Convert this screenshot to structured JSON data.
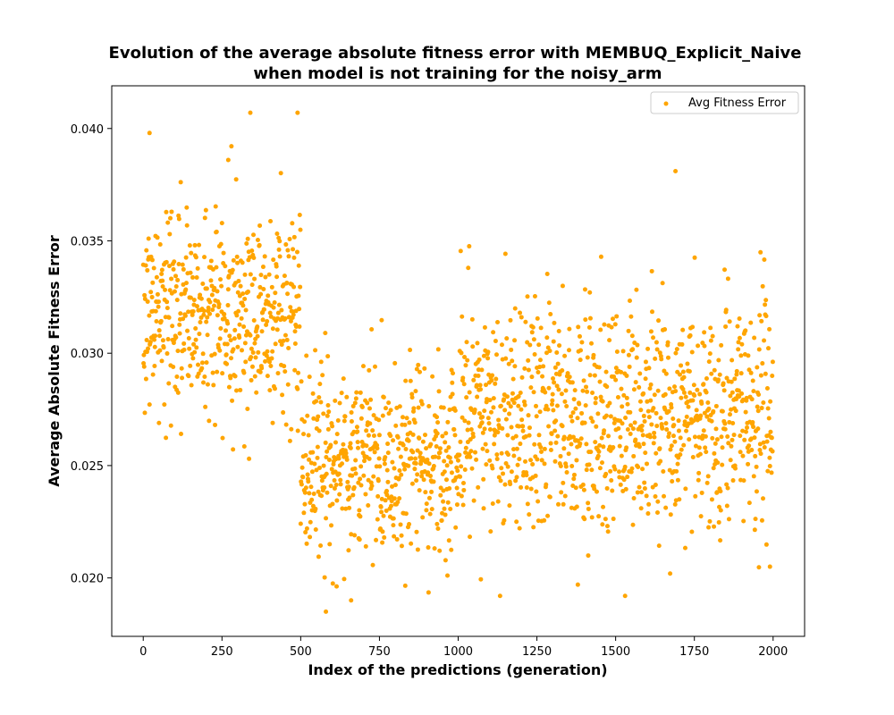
{
  "chart_data": {
    "type": "scatter",
    "title_lines": [
      "Evolution of the average absolute fitness error with MEMBUQ_Explicit_Naive",
      "when model is not training for the noisy_arm"
    ],
    "xlabel": "Index of the predictions (generation)",
    "ylabel": "Average Absolute Fitness Error",
    "xlim": [
      -100,
      2100
    ],
    "ylim": [
      0.0174,
      0.0419
    ],
    "xticks": [
      0,
      250,
      500,
      750,
      1000,
      1250,
      1500,
      1750,
      2000
    ],
    "xtick_labels": [
      "0",
      "250",
      "500",
      "750",
      "1000",
      "1250",
      "1500",
      "1750",
      "2000"
    ],
    "yticks": [
      0.02,
      0.025,
      0.03,
      0.035,
      0.04
    ],
    "ytick_labels": [
      "0.020",
      "0.025",
      "0.030",
      "0.035",
      "0.040"
    ],
    "legend": {
      "label": "Avg Fitness Error",
      "position": "top-right"
    },
    "color": "#FFA500",
    "series": [
      {
        "name": "Avg Fitness Error",
        "segments": [
          {
            "x_start": 0,
            "x_end": 499,
            "count": 500,
            "center": 0.0318,
            "spread": 0.0023,
            "min": 0.0243,
            "max": 0.0407
          },
          {
            "x_start": 500,
            "x_end": 999,
            "count": 500,
            "center": 0.0253,
            "spread": 0.0022,
            "min": 0.0185,
            "max": 0.0346
          },
          {
            "x_start": 1000,
            "x_end": 1999,
            "count": 1000,
            "center": 0.0272,
            "spread": 0.0025,
            "min": 0.0192,
            "max": 0.0381
          }
        ],
        "notable_points": [
          {
            "x": 20,
            "y": 0.0398
          },
          {
            "x": 340,
            "y": 0.0407
          },
          {
            "x": 490,
            "y": 0.0407
          },
          {
            "x": 270,
            "y": 0.0386
          },
          {
            "x": 580,
            "y": 0.0185
          },
          {
            "x": 660,
            "y": 0.019
          },
          {
            "x": 1690,
            "y": 0.0381
          },
          {
            "x": 1530,
            "y": 0.0192
          },
          {
            "x": 1380,
            "y": 0.0197
          },
          {
            "x": 1990,
            "y": 0.0205
          }
        ]
      }
    ]
  }
}
